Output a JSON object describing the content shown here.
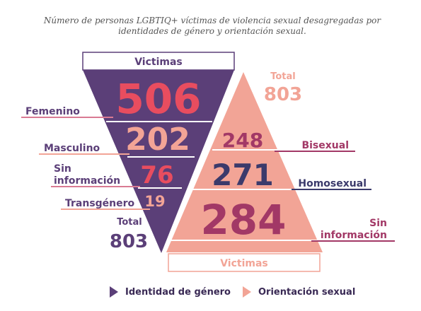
{
  "subtitle": "Número de personas LGBTIQ+ víctimas de violencia sexual desagregadas por identidades de género y orientación sexual.",
  "colors": {
    "purple": "#5b3f78",
    "salmon": "#f2a496",
    "pink": "#e84d5f",
    "magenta": "#a23866",
    "navy": "#3b3a6b",
    "line_pink": "#d97a93",
    "line_purple": "#8a5a8e"
  },
  "chart_data": [
    {
      "type": "funnel",
      "dimension": "Identidad de género",
      "header": "Victimas",
      "total_label": "Total",
      "total": 803,
      "categories": [
        "Femenino",
        "Masculino",
        "Sin información",
        "Transgénero"
      ],
      "values": [
        506,
        202,
        76,
        19
      ]
    },
    {
      "type": "pyramid",
      "dimension": "Orientación sexual",
      "footer": "Victimas",
      "total_label": "Total",
      "total": 803,
      "categories": [
        "Bisexual",
        "Homosexual",
        "Sin información"
      ],
      "values": [
        248,
        271,
        284
      ]
    }
  ],
  "legend": [
    {
      "label": "Identidad de género",
      "color": "#5b3f78"
    },
    {
      "label": "Orientación sexual",
      "color": "#f2a496"
    }
  ]
}
